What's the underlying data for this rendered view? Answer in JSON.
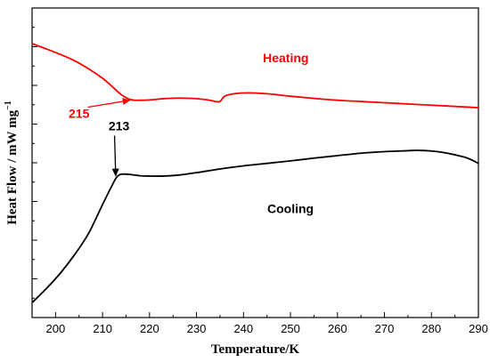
{
  "chart_data": {
    "type": "line",
    "xlabel": "Temperature/K",
    "ylabel_main": "Heat Flow / mW mg",
    "ylabel_sup": "−1",
    "xlim": [
      195,
      290
    ],
    "ylim": [
      0,
      10
    ],
    "x_ticks": [
      200,
      210,
      220,
      230,
      240,
      250,
      260,
      270,
      280,
      290
    ],
    "y_tick_labels_shown": false,
    "grid": false,
    "series": [
      {
        "name": "Heating",
        "color": "#ff0000",
        "x": [
          195,
          198,
          201,
          204,
          207,
          210,
          212,
          214,
          216,
          218,
          220,
          223,
          226,
          229,
          232,
          234,
          235,
          236,
          238,
          241,
          245,
          250,
          255,
          260,
          265,
          270,
          275,
          280,
          285,
          290
        ],
        "y": [
          8.85,
          8.68,
          8.5,
          8.3,
          8.04,
          7.73,
          7.47,
          7.2,
          7.04,
          7.02,
          7.03,
          7.07,
          7.09,
          7.08,
          7.04,
          6.98,
          6.98,
          7.15,
          7.23,
          7.26,
          7.23,
          7.15,
          7.08,
          7.02,
          6.98,
          6.94,
          6.9,
          6.86,
          6.82,
          6.78
        ]
      },
      {
        "name": "Cooling",
        "color": "#000000",
        "x": [
          195,
          198,
          201,
          204,
          207,
          210,
          212,
          213,
          214,
          216,
          218,
          220,
          223,
          226,
          230,
          235,
          240,
          245,
          250,
          255,
          260,
          265,
          270,
          275,
          277,
          280,
          283,
          286,
          288,
          290
        ],
        "y": [
          0.48,
          0.93,
          1.43,
          2.02,
          2.71,
          3.65,
          4.26,
          4.53,
          4.63,
          4.62,
          4.58,
          4.57,
          4.57,
          4.6,
          4.68,
          4.8,
          4.9,
          4.98,
          5.06,
          5.15,
          5.23,
          5.31,
          5.36,
          5.39,
          5.4,
          5.38,
          5.32,
          5.22,
          5.13,
          4.98
        ]
      }
    ],
    "annotations": [
      {
        "text": "Heating",
        "color": "#ff0000",
        "x": 249,
        "y": 8.25
      },
      {
        "text": "215",
        "color": "#ff0000",
        "x": 205,
        "y": 6.45,
        "arrow_to": [
          215.8,
          7.02
        ]
      },
      {
        "text": "213",
        "color": "#000000",
        "x": 213.5,
        "y": 6.05,
        "arrow_to": [
          212.8,
          4.58
        ]
      },
      {
        "text": "Cooling",
        "color": "#000000",
        "x": 250,
        "y": 3.38
      }
    ]
  }
}
